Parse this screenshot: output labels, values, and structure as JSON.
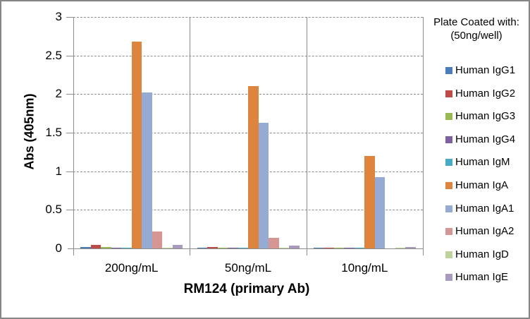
{
  "chart_data": {
    "type": "bar",
    "title": "",
    "xlabel": "RM124 (primary Ab)",
    "ylabel": "Abs (405nm)",
    "ylim": [
      0,
      3
    ],
    "yticks": [
      "0",
      "0.5",
      "1",
      "1.5",
      "2",
      "2.5",
      "3"
    ],
    "grid": true,
    "legend_position": "right",
    "legend_title": "Plate Coated with: (50ng/well)",
    "categories": [
      "200ng/mL",
      "50ng/mL",
      "10ng/mL"
    ],
    "series": [
      {
        "name": "Human IgG1",
        "color": "#4a7ebb",
        "values": [
          0.02,
          0.01,
          0.01
        ]
      },
      {
        "name": "Human IgG2",
        "color": "#be4b48",
        "values": [
          0.05,
          0.02,
          0.01
        ]
      },
      {
        "name": "Human IgG3",
        "color": "#98b954",
        "values": [
          0.02,
          0.01,
          0.01
        ]
      },
      {
        "name": "Human IgG4",
        "color": "#7d60a0",
        "values": [
          0.01,
          0.01,
          0.01
        ]
      },
      {
        "name": "Human IgM",
        "color": "#46aac5",
        "values": [
          0.01,
          0.01,
          0.01
        ]
      },
      {
        "name": "Human IgA",
        "color": "#dd843f",
        "values": [
          2.68,
          2.1,
          1.2
        ]
      },
      {
        "name": "Human IgA1",
        "color": "#95abd3",
        "values": [
          2.02,
          1.63,
          0.92
        ]
      },
      {
        "name": "Human IgA2",
        "color": "#d59592",
        "values": [
          0.22,
          0.14,
          0.0
        ]
      },
      {
        "name": "Human IgD",
        "color": "#bdd39b",
        "values": [
          0.01,
          0.01,
          0.01
        ]
      },
      {
        "name": "Human IgE",
        "color": "#a99bbd",
        "values": [
          0.05,
          0.04,
          0.02
        ]
      }
    ]
  },
  "labels": {
    "ytitle": "Abs (405nm)",
    "xtitle": "RM124 (primary Ab)",
    "legend_title_line1": "Plate Coated with:",
    "legend_title_line2": "(50ng/well)"
  }
}
